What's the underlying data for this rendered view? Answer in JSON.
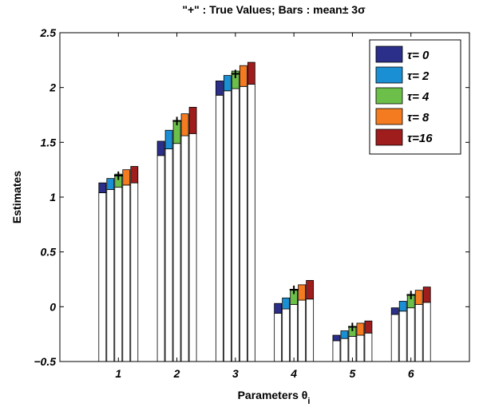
{
  "chart_data": {
    "type": "bar",
    "title": "\"+\" : True Values; Bars : mean± 3σ",
    "xlabel": "Parameters θ",
    "xlabel_subscript": "i",
    "ylabel": "Estimates",
    "ylim": [
      -0.5,
      2.5
    ],
    "yticks": [
      "−0.5",
      "0",
      "0.5",
      "1",
      "1.5",
      "2",
      "2.5"
    ],
    "ytick_values": [
      -0.5,
      0,
      0.5,
      1,
      1.5,
      2,
      2.5
    ],
    "categories": [
      "1",
      "2",
      "3",
      "4",
      "5",
      "6"
    ],
    "true_values": [
      1.2,
      1.7,
      2.13,
      0.16,
      -0.18,
      0.11
    ],
    "true_marker": "+",
    "grid": false,
    "legend_position": "top-right",
    "series": [
      {
        "name": "τ= 0",
        "color": "#2b2f8a",
        "lower": [
          1.04,
          1.38,
          1.93,
          -0.06,
          -0.31,
          -0.07
        ],
        "upper": [
          1.13,
          1.51,
          2.06,
          0.03,
          -0.26,
          -0.01
        ]
      },
      {
        "name": "τ= 2",
        "color": "#1b8fd3",
        "lower": [
          1.07,
          1.44,
          1.97,
          -0.02,
          -0.29,
          -0.04
        ],
        "upper": [
          1.17,
          1.61,
          2.11,
          0.08,
          -0.22,
          0.05
        ]
      },
      {
        "name": "τ= 4",
        "color": "#6cc04a",
        "lower": [
          1.09,
          1.49,
          1.99,
          0.02,
          -0.27,
          -0.01
        ],
        "upper": [
          1.21,
          1.7,
          2.15,
          0.15,
          -0.18,
          0.11
        ]
      },
      {
        "name": "τ= 8",
        "color": "#f47b20",
        "lower": [
          1.11,
          1.56,
          2.01,
          0.06,
          -0.26,
          0.02
        ],
        "upper": [
          1.25,
          1.76,
          2.2,
          0.2,
          -0.15,
          0.15
        ]
      },
      {
        "name": "τ=16",
        "color": "#a01d1d",
        "lower": [
          1.13,
          1.58,
          2.03,
          0.07,
          -0.24,
          0.04
        ],
        "upper": [
          1.28,
          1.82,
          2.23,
          0.24,
          -0.13,
          0.18
        ]
      }
    ]
  }
}
